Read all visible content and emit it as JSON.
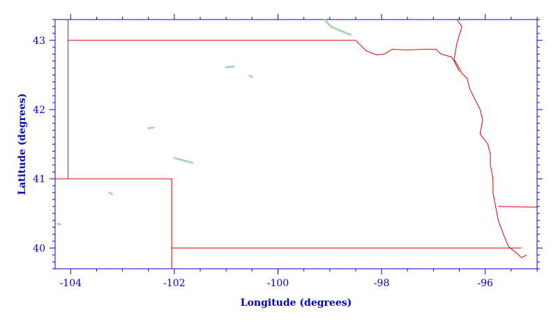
{
  "map": {
    "xlabel": "Longitude (degrees)",
    "ylabel": "Latitude (degrees)",
    "xlim": [
      -104.3,
      -95.0
    ],
    "ylim": [
      39.7,
      43.3
    ],
    "x_ticks": [
      {
        "value": -104,
        "label": "-104"
      },
      {
        "value": -102,
        "label": "-102"
      },
      {
        "value": -100,
        "label": "-100"
      },
      {
        "value": -98,
        "label": "-98"
      },
      {
        "value": -96,
        "label": "-96"
      }
    ],
    "y_ticks": [
      {
        "value": 40,
        "label": "40"
      },
      {
        "value": 41,
        "label": "41"
      },
      {
        "value": 42,
        "label": "42"
      },
      {
        "value": 43,
        "label": "43"
      }
    ],
    "colors": {
      "axis": "#0000cc",
      "border": "#dd0000",
      "water": "#a8d8b0"
    },
    "borders": [
      {
        "name": "wyoming-border",
        "points": [
          [
            -104.05,
            43.3
          ],
          [
            -104.05,
            41.0
          ]
        ]
      },
      {
        "name": "south-dakota-border",
        "points": [
          [
            -104.05,
            43.0
          ],
          [
            -98.5,
            43.0
          ]
        ]
      },
      {
        "name": "colorado-north-border",
        "points": [
          [
            -104.3,
            41.0
          ],
          [
            -102.05,
            41.0
          ],
          [
            -102.05,
            39.7
          ]
        ]
      },
      {
        "name": "kansas-border",
        "points": [
          [
            -102.05,
            40.0
          ],
          [
            -95.3,
            40.0
          ]
        ]
      },
      {
        "name": "missouri-river-upper",
        "points": [
          [
            -98.5,
            43.0
          ],
          [
            -98.3,
            42.85
          ],
          [
            -98.1,
            42.79
          ],
          [
            -97.95,
            42.8
          ],
          [
            -97.8,
            42.87
          ],
          [
            -97.5,
            42.86
          ],
          [
            -97.2,
            42.87
          ],
          [
            -96.95,
            42.87
          ],
          [
            -96.85,
            42.8
          ],
          [
            -96.65,
            42.76
          ],
          [
            -96.6,
            42.7
          ],
          [
            -96.5,
            42.55
          ]
        ]
      },
      {
        "name": "big-sioux-border",
        "points": [
          [
            -96.55,
            43.3
          ],
          [
            -96.45,
            43.2
          ],
          [
            -96.55,
            42.95
          ],
          [
            -96.6,
            42.72
          ],
          [
            -96.5,
            42.6
          ],
          [
            -96.45,
            42.52
          ]
        ]
      },
      {
        "name": "missouri-river-east",
        "points": [
          [
            -96.45,
            42.52
          ],
          [
            -96.35,
            42.45
          ],
          [
            -96.3,
            42.3
          ],
          [
            -96.2,
            42.15
          ],
          [
            -96.1,
            42.0
          ],
          [
            -96.05,
            41.85
          ],
          [
            -96.1,
            41.65
          ],
          [
            -95.95,
            41.5
          ],
          [
            -95.9,
            41.35
          ],
          [
            -95.9,
            41.2
          ],
          [
            -95.85,
            41.0
          ],
          [
            -95.85,
            40.8
          ],
          [
            -95.8,
            40.6
          ],
          [
            -95.75,
            40.4
          ],
          [
            -95.65,
            40.2
          ],
          [
            -95.55,
            40.02
          ],
          [
            -95.4,
            39.93
          ],
          [
            -95.3,
            39.86
          ],
          [
            -95.2,
            39.9
          ]
        ]
      },
      {
        "name": "iowa-missouri-border",
        "points": [
          [
            -95.75,
            40.6
          ],
          [
            -95.0,
            40.59
          ]
        ]
      }
    ],
    "water_paths": [
      {
        "name": "lewis-clark-lake",
        "points": [
          [
            -99.1,
            43.3
          ],
          [
            -98.98,
            43.2
          ],
          [
            -98.8,
            43.14
          ],
          [
            -98.6,
            43.08
          ]
        ]
      },
      {
        "name": "lake-mcconaughy",
        "points": [
          [
            -102.0,
            41.3
          ],
          [
            -101.85,
            41.27
          ],
          [
            -101.65,
            41.23
          ]
        ]
      },
      {
        "name": "small-lake-1",
        "points": [
          [
            -101.0,
            42.61
          ],
          [
            -100.85,
            42.62
          ]
        ]
      },
      {
        "name": "small-lake-2",
        "points": [
          [
            -103.25,
            40.8
          ],
          [
            -103.2,
            40.78
          ]
        ]
      },
      {
        "name": "small-lake-3",
        "points": [
          [
            -104.25,
            40.35
          ],
          [
            -104.2,
            40.34
          ]
        ]
      },
      {
        "name": "small-lake-4",
        "points": [
          [
            -102.5,
            41.73
          ],
          [
            -102.4,
            41.74
          ]
        ]
      },
      {
        "name": "small-lake-5",
        "points": [
          [
            -100.55,
            42.49
          ],
          [
            -100.5,
            42.47
          ]
        ]
      }
    ]
  }
}
